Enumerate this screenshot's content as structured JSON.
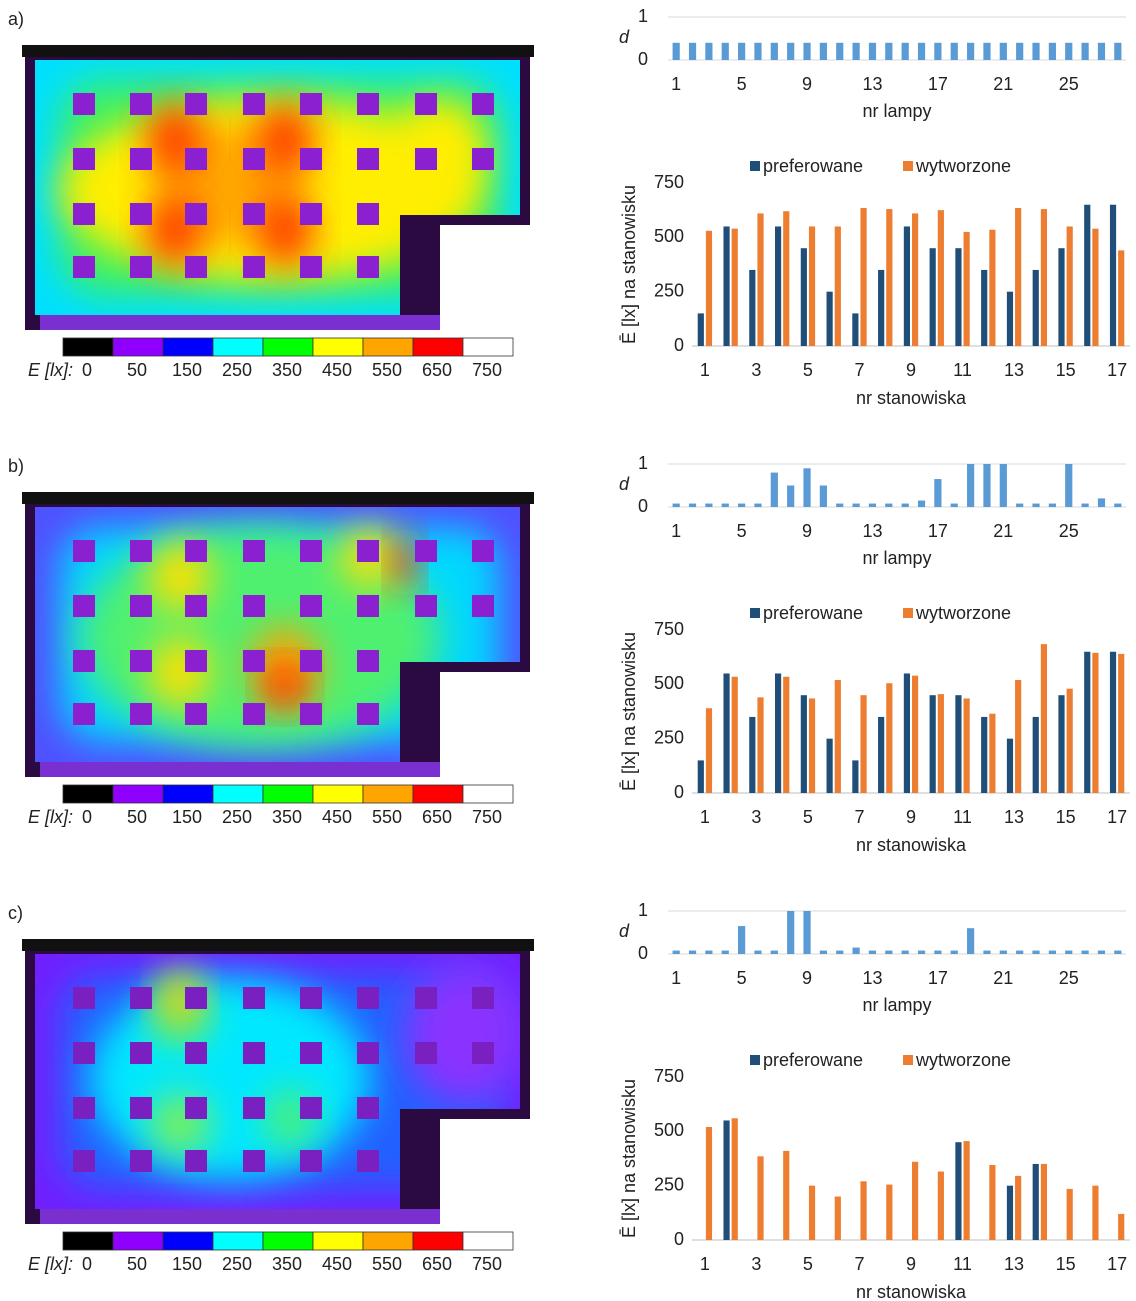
{
  "panel_labels": [
    "a)",
    "b)",
    "c)"
  ],
  "colorbar": {
    "label": "E [lx]:",
    "ticks": [
      0,
      50,
      150,
      250,
      350,
      450,
      550,
      650,
      750
    ],
    "colors": [
      "#000000",
      "#8f00ff",
      "#0000ff",
      "#00ffff",
      "#00ff00",
      "#ffff00",
      "#ffa500",
      "#ff0000",
      "#ffffff"
    ]
  },
  "chart_data": [
    {
      "type": "bar",
      "ylabel": "d",
      "xlabel": "nr lampy",
      "categories": [
        1,
        null,
        null,
        null,
        5,
        null,
        null,
        null,
        9,
        null,
        null,
        null,
        13,
        null,
        null,
        null,
        17,
        null,
        null,
        null,
        21,
        null,
        null,
        null,
        25,
        null,
        null,
        null
      ],
      "values": [
        0.4,
        0.4,
        0.4,
        0.4,
        0.4,
        0.4,
        0.4,
        0.4,
        0.4,
        0.4,
        0.4,
        0.4,
        0.4,
        0.4,
        0.4,
        0.4,
        0.4,
        0.4,
        0.4,
        0.4,
        0.4,
        0.4,
        0.4,
        0.4,
        0.4,
        0.4,
        0.4,
        0.4
      ],
      "color": "#5b9bd5",
      "ylim": [
        0,
        1
      ],
      "yticks": [
        0,
        1
      ],
      "grid": true
    },
    {
      "type": "grouped_bar",
      "ylabel": "Ē [lx] na stanowisku",
      "xlabel": "nr stanowiska",
      "categories": [
        1,
        null,
        3,
        null,
        5,
        null,
        7,
        null,
        9,
        null,
        11,
        null,
        13,
        null,
        15,
        null,
        17
      ],
      "series": [
        {
          "name": "preferowane",
          "color": "#1f4e79",
          "values": [
            150,
            550,
            350,
            550,
            450,
            250,
            150,
            350,
            550,
            450,
            450,
            350,
            250,
            350,
            450,
            650,
            650
          ]
        },
        {
          "name": "wytworzone",
          "color": "#ed7d31",
          "values": [
            530,
            540,
            610,
            620,
            550,
            550,
            635,
            630,
            610,
            625,
            525,
            535,
            635,
            630,
            550,
            540,
            440
          ]
        }
      ],
      "ylim": [
        0,
        750
      ],
      "yticks": [
        0,
        250,
        500,
        750
      ],
      "grid": false
    },
    {
      "type": "bar",
      "ylabel": "d",
      "xlabel": "nr lampy",
      "categories": [
        1,
        null,
        null,
        null,
        5,
        null,
        null,
        null,
        9,
        null,
        null,
        null,
        13,
        null,
        null,
        null,
        17,
        null,
        null,
        null,
        21,
        null,
        null,
        null,
        25,
        null,
        null,
        null
      ],
      "values": [
        0.08,
        0.08,
        0.08,
        0.08,
        0.08,
        0.08,
        0.8,
        0.5,
        0.9,
        0.5,
        0.08,
        0.08,
        0.08,
        0.08,
        0.08,
        0.15,
        0.65,
        0.08,
        1,
        1,
        1,
        0.08,
        0.08,
        0.08,
        1,
        0.08,
        0.2,
        0.08
      ],
      "color": "#5b9bd5",
      "ylim": [
        0,
        1
      ],
      "yticks": [
        0,
        1
      ],
      "grid": true
    },
    {
      "type": "grouped_bar",
      "ylabel": "Ē [lx] na stanowisku",
      "xlabel": "nr stanowiska",
      "categories": [
        1,
        null,
        3,
        null,
        5,
        null,
        7,
        null,
        9,
        null,
        11,
        null,
        13,
        null,
        15,
        null,
        17
      ],
      "series": [
        {
          "name": "preferowane",
          "color": "#1f4e79",
          "values": [
            150,
            550,
            350,
            550,
            450,
            250,
            150,
            350,
            550,
            450,
            450,
            350,
            250,
            350,
            450,
            650,
            650
          ]
        },
        {
          "name": "wytworzone",
          "color": "#ed7d31",
          "values": [
            390,
            535,
            440,
            535,
            435,
            520,
            450,
            505,
            540,
            455,
            435,
            365,
            520,
            685,
            480,
            645,
            640
          ]
        }
      ],
      "ylim": [
        0,
        750
      ],
      "yticks": [
        0,
        250,
        500,
        750
      ],
      "grid": false
    },
    {
      "type": "bar",
      "ylabel": "d",
      "xlabel": "nr lampy",
      "categories": [
        1,
        null,
        null,
        null,
        5,
        null,
        null,
        null,
        9,
        null,
        null,
        null,
        13,
        null,
        null,
        null,
        17,
        null,
        null,
        null,
        21,
        null,
        null,
        null,
        25,
        null,
        null,
        null
      ],
      "values": [
        0.08,
        0.08,
        0.08,
        0.08,
        0.65,
        0.08,
        0.08,
        1,
        1,
        0.08,
        0.08,
        0.15,
        0.08,
        0.08,
        0.08,
        0.08,
        0.08,
        0.08,
        0.6,
        0.08,
        0.08,
        0.08,
        0.08,
        0.08,
        0.08,
        0.08,
        0.08,
        0.08
      ],
      "color": "#5b9bd5",
      "ylim": [
        0,
        1
      ],
      "yticks": [
        0,
        1
      ],
      "grid": true
    },
    {
      "type": "grouped_bar",
      "ylabel": "Ē [lx] na stanowisku",
      "xlabel": "nr stanowiska",
      "categories": [
        1,
        null,
        3,
        null,
        5,
        null,
        7,
        null,
        9,
        null,
        11,
        null,
        13,
        null,
        15,
        null,
        17
      ],
      "series": [
        {
          "name": "preferowane",
          "color": "#1f4e79",
          "values": [
            null,
            550,
            null,
            null,
            null,
            null,
            null,
            null,
            null,
            null,
            450,
            null,
            250,
            350,
            null,
            null,
            null
          ]
        },
        {
          "name": "wytworzone",
          "color": "#ed7d31",
          "values": [
            520,
            560,
            385,
            410,
            250,
            200,
            270,
            255,
            360,
            315,
            455,
            345,
            295,
            350,
            235,
            250,
            120
          ]
        }
      ],
      "ylim": [
        0,
        750
      ],
      "yticks": [
        0,
        250,
        500,
        750
      ],
      "grid": false
    }
  ]
}
